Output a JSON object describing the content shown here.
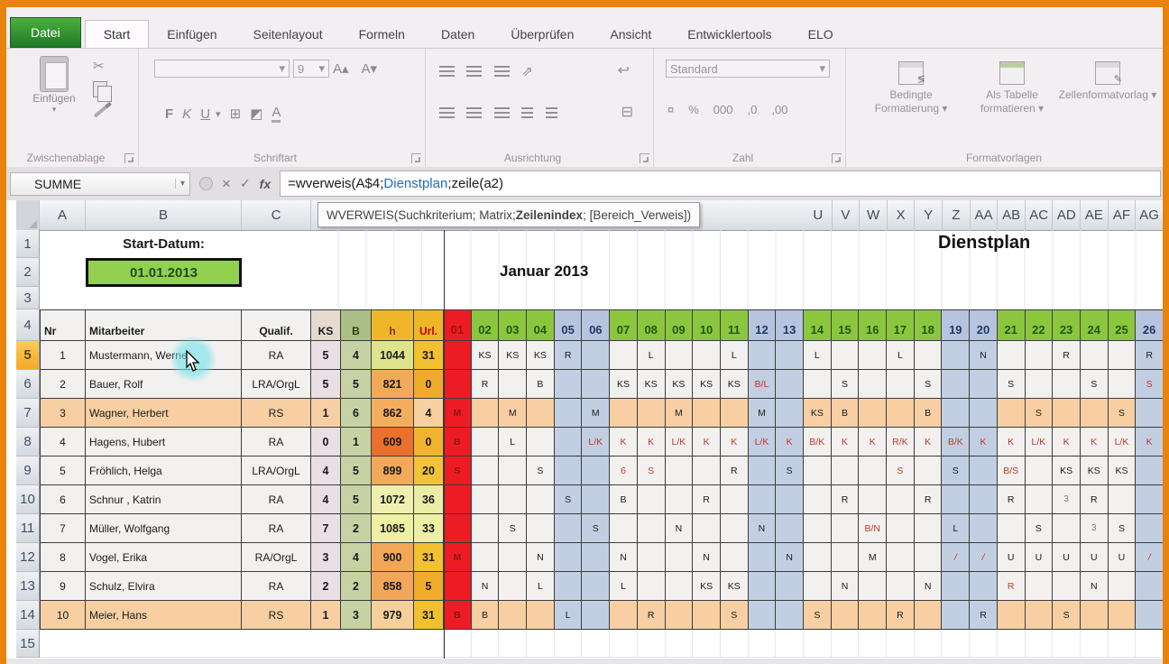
{
  "ribbon": {
    "tabs": [
      "Datei",
      "Start",
      "Einfügen",
      "Seitenlayout",
      "Formeln",
      "Daten",
      "Überprüfen",
      "Ansicht",
      "Entwicklertools",
      "ELO"
    ],
    "groups": {
      "clipboard": "Zwischenablage",
      "font": "Schriftart",
      "alignment": "Ausrichtung",
      "number": "Zahl",
      "styles": "Formatvorlagen"
    },
    "paste_label": "Einfügen",
    "font_size": "9",
    "number_format": "Standard",
    "style_buttons": [
      "Bedingte Formatierung",
      "Als Tabelle formatieren",
      "Zellenformatvorlag"
    ],
    "font_buttons": {
      "bold": "F",
      "italic": "K",
      "underline": "U"
    },
    "number_buttons": {
      "percent": "%",
      "thousands": "000",
      "dec_add": ",0",
      "dec_del": ",00"
    },
    "icons": {
      "cut": "✂",
      "border": "⊞",
      "fontcolor": "A",
      "grow": "A▴",
      "shrink": "A▾",
      "orientation": "⇗",
      "wrap": "↩",
      "merge": "⊟",
      "currency": "¤",
      "dd": "▾"
    }
  },
  "formula_bar": {
    "name_box": "SUMME",
    "formula_pre": "=wverweis(A$4;",
    "formula_ref": "Dienstplan",
    "formula_post": ";zeile(a2)",
    "icons": {
      "cancel": "×",
      "enter": "✓",
      "fx": "fx"
    }
  },
  "tooltip": {
    "pre": "WVERWEIS(Suchkriterium; Matrix; ",
    "bold": "Zeilenindex",
    "post": "; [Bereich_Verweis])"
  },
  "sheet": {
    "cols_left": [
      "A",
      "B",
      "C"
    ],
    "cols_right": [
      "U",
      "V",
      "W",
      "X",
      "Y",
      "Z",
      "AA",
      "AB",
      "AC",
      "AD",
      "AE",
      "AF",
      "AG"
    ],
    "row_numbers": [
      1,
      2,
      3,
      4,
      5,
      6,
      7,
      8,
      9,
      10,
      11,
      12,
      13,
      14,
      15
    ],
    "selected_row": 5,
    "title": "Dienstplan",
    "start_label": "Start-Datum:",
    "start_date": "01.01.2013",
    "month": "Januar 2013",
    "header": {
      "nr": "Nr",
      "name": "Mitarbeiter",
      "qualif": "Qualif.",
      "ks": "KS",
      "b": "B",
      "h": "h",
      "url": "Url."
    },
    "days": [
      "01",
      "02",
      "03",
      "04",
      "05",
      "06",
      "07",
      "08",
      "09",
      "10",
      "11",
      "12",
      "13",
      "14",
      "15",
      "16",
      "17",
      "18",
      "19",
      "20",
      "21",
      "22",
      "23",
      "24",
      "25",
      "26"
    ],
    "weekend_days": [
      "05",
      "06",
      "12",
      "13",
      "19",
      "20",
      "26"
    ],
    "holiday_days": [
      "01"
    ],
    "colors": {
      "weekday_header": "#8cc63f",
      "weekend_header": "#b6c4df",
      "holiday": "#ed1c24",
      "weekend_cell": "#c2cfe3",
      "peach_row": "#f7cfa3",
      "ks_col": "#eadfe5",
      "b_col": "#c6d2a4",
      "start_date_cell": "#92d050"
    },
    "rows": [
      {
        "nr": "1",
        "name": "Mustermann, Werner",
        "qualif": "RA",
        "ks": "5",
        "b": "4",
        "h": "1044",
        "url": "31",
        "h_color": "#dde48c",
        "url_color": "#f2c12f",
        "highlight": false,
        "days": [
          "",
          "KS",
          "KS",
          "KS",
          "R",
          "",
          "",
          "L",
          "",
          "",
          "L",
          "",
          "",
          "L",
          "",
          "",
          "L",
          "",
          "",
          "N",
          "",
          "",
          "R",
          "",
          "",
          "R"
        ]
      },
      {
        "nr": "2",
        "name": "Bauer, Rolf",
        "qualif": "LRA/OrgL",
        "ks": "5",
        "b": "5",
        "h": "821",
        "url": "0",
        "h_color": "#f2a95a",
        "url_color": "#f0aa2b",
        "highlight": false,
        "days": [
          "",
          "R",
          "",
          "B",
          "",
          "",
          "KS",
          "KS",
          "KS",
          "KS",
          "KS",
          "!B/L",
          "",
          "",
          "S",
          "",
          "",
          "S",
          "",
          "",
          "S",
          "",
          "",
          "S",
          "",
          "!S"
        ]
      },
      {
        "nr": "3",
        "name": "Wagner, Herbert",
        "qualif": "RS",
        "ks": "1",
        "b": "6",
        "h": "862",
        "url": "4",
        "h_color": "#f2ae5e",
        "url_color": "#f6d09f",
        "highlight": true,
        "days": [
          "M",
          "",
          "M",
          "",
          "",
          "M",
          "",
          "",
          "M",
          "",
          "",
          "M",
          "",
          "KS",
          "B",
          "",
          "",
          "B",
          "",
          "",
          "",
          "S",
          "",
          "",
          "S",
          ""
        ]
      },
      {
        "nr": "4",
        "name": "Hagens, Hubert",
        "qualif": "RA",
        "ks": "0",
        "b": "1",
        "h": "609",
        "url": "0",
        "h_color": "#ea712c",
        "url_color": "#f2b32e",
        "highlight": false,
        "days": [
          "B",
          "",
          "L",
          "",
          "",
          "!L/K",
          "!K",
          "!K",
          "!L/K",
          "!K",
          "!K",
          "!L/K",
          "!K",
          "!B/K",
          "!K",
          "!K",
          "!R/K",
          "!K",
          "!B/K",
          "!K",
          "!K",
          "!L/K",
          "!K",
          "!K",
          "!L/K",
          "!K"
        ]
      },
      {
        "nr": "5",
        "name": "Fröhlich, Helga",
        "qualif": "LRA/OrgL",
        "ks": "4",
        "b": "5",
        "h": "899",
        "url": "20",
        "h_color": "#f2a95a",
        "url_color": "#f2c33a",
        "highlight": false,
        "days": [
          "S",
          "",
          "",
          "S",
          "",
          "",
          "!6",
          "!S",
          "",
          "",
          "R",
          "",
          "S",
          "",
          "",
          "",
          "!S",
          "",
          "S",
          "",
          "!B/S",
          "",
          "KS",
          "KS",
          "KS",
          ""
        ]
      },
      {
        "nr": "6",
        "name": "Schnur , Katrin",
        "qualif": "RA",
        "ks": "4",
        "b": "5",
        "h": "1072",
        "url": "36",
        "h_color": "#eff0b0",
        "url_color": "#e9eda6",
        "highlight": false,
        "days": [
          "",
          "",
          "",
          "",
          "S",
          "",
          "B",
          "",
          "",
          "R",
          "",
          "",
          "",
          "",
          "R",
          "",
          "",
          "R",
          "",
          "",
          "R",
          "",
          "~3",
          "R",
          "",
          ""
        ]
      },
      {
        "nr": "7",
        "name": "Müller, Wolfgang",
        "qualif": "RA",
        "ks": "7",
        "b": "2",
        "h": "1085",
        "url": "33",
        "h_color": "#eef0a3",
        "url_color": "#edefa3",
        "highlight": false,
        "days": [
          "",
          "",
          "S",
          "",
          "",
          "S",
          "",
          "",
          "N",
          "",
          "",
          "N",
          "",
          "",
          "",
          "!B/N",
          "",
          "",
          "L",
          "",
          "",
          "S",
          "",
          "~3",
          "S",
          ""
        ]
      },
      {
        "nr": "8",
        "name": "Vogel, Erika",
        "qualif": "RA/OrgL",
        "ks": "3",
        "b": "4",
        "h": "900",
        "url": "31",
        "h_color": "#f2a758",
        "url_color": "#f2c12f",
        "highlight": false,
        "days": [
          "M",
          "",
          "",
          "N",
          "",
          "",
          "N",
          "",
          "",
          "N",
          "",
          "",
          "N",
          "",
          "",
          "M",
          "",
          "",
          "!/",
          "!/",
          "U",
          "U",
          "U",
          "U",
          "U",
          "!/"
        ]
      },
      {
        "nr": "9",
        "name": "Schulz, Elvira",
        "qualif": "RA",
        "ks": "2",
        "b": "2",
        "h": "858",
        "url": "5",
        "h_color": "#f1a65a",
        "url_color": "#f0ad2c",
        "highlight": false,
        "days": [
          "",
          "N",
          "",
          "L",
          "",
          "",
          "L",
          "",
          "",
          "KS",
          "KS",
          "",
          "",
          "",
          "N",
          "",
          "",
          "N",
          "",
          "",
          "!R",
          "",
          "",
          "N",
          "",
          ""
        ]
      },
      {
        "nr": "10",
        "name": "Meier, Hans",
        "qualif": "RS",
        "ks": "1",
        "b": "3",
        "h": "979",
        "url": "31",
        "h_color": "#f6cf9b",
        "url_color": "#f2c12f",
        "highlight": true,
        "days": [
          "B",
          "B",
          "",
          "",
          "L",
          "",
          "",
          "R",
          "",
          "",
          "S",
          "",
          "",
          "S",
          "",
          "",
          "R",
          "",
          "",
          "R",
          "",
          "",
          "S",
          "",
          "",
          ""
        ]
      }
    ]
  }
}
